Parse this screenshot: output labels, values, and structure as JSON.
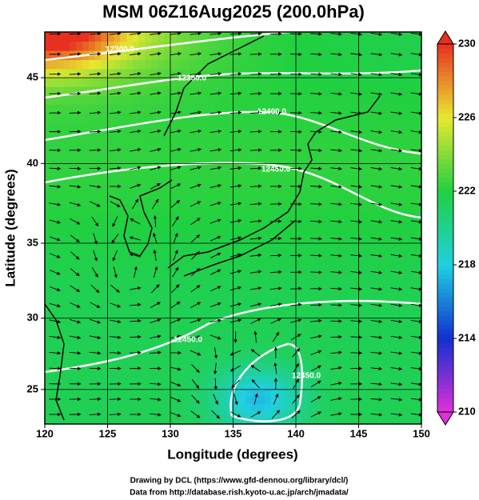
{
  "title": "MSM 06Z16Aug2025 (200.0hPa)",
  "map": {
    "projection": "mercator",
    "xlim": [
      120,
      150
    ],
    "ylim": [
      22.5,
      47.5
    ],
    "xticks": [
      120,
      125,
      130,
      135,
      140,
      145,
      150
    ],
    "yticks": [
      25,
      30,
      35,
      40,
      45
    ],
    "xlabel": "Longitude (degrees)",
    "ylabel": "Latitude  (degrees)",
    "grid": true,
    "contour_labels": [
      "12300.0",
      "12350.0",
      "12400.0",
      "12450.0",
      "12450.0",
      "12450.0"
    ]
  },
  "colorbar": {
    "lim": [
      210,
      230
    ],
    "ticks": [
      210,
      214,
      218,
      222,
      226,
      230
    ],
    "colors": [
      "#e030d8",
      "#1030d0",
      "#20d0e0",
      "#20d040",
      "#e8e830",
      "#e83020"
    ]
  },
  "credits": [
    "Drawing by DCL (https://www.gfd-dennou.org/library/dcl/)",
    "Data from http://database.rish.kyoto-u.ac.jp/arch/jmadata/"
  ]
}
